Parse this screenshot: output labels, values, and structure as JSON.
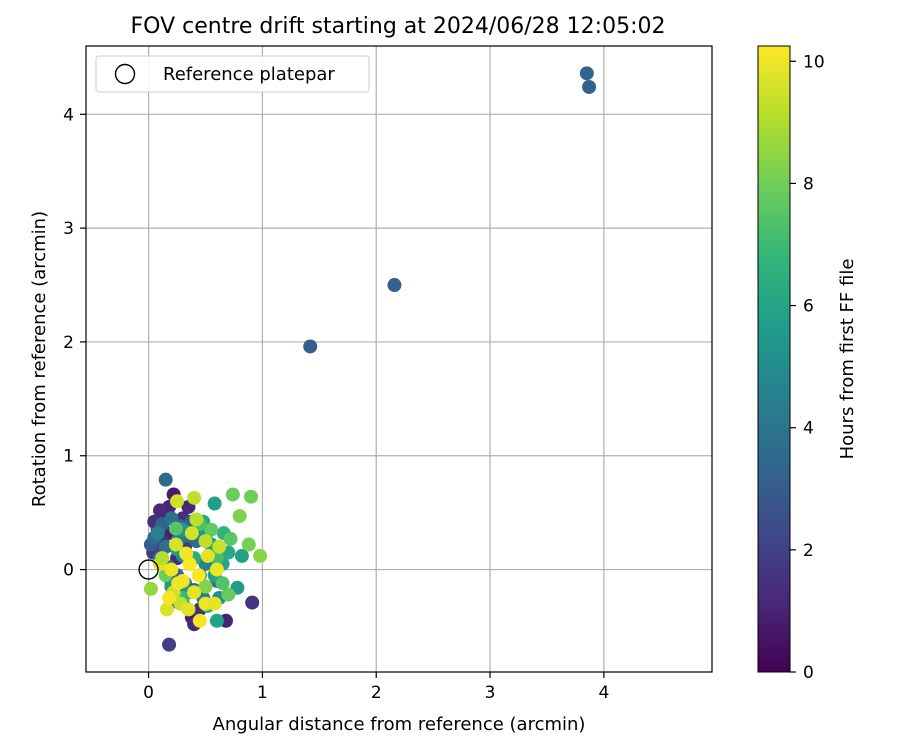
{
  "chart_data": {
    "type": "scatter",
    "title": "FOV centre drift starting at 2024/06/28 12:05:02",
    "xlabel": "Angular distance from reference (arcmin)",
    "ylabel": "Rotation from reference (arcmin)",
    "xlim": [
      -0.55,
      4.95
    ],
    "ylim": [
      -0.9,
      4.6
    ],
    "xticks": [
      0,
      1,
      2,
      3,
      4
    ],
    "yticks": [
      0,
      1,
      2,
      3,
      4
    ],
    "grid": true,
    "legend": {
      "position": "top-left",
      "entries": [
        {
          "label": "Reference platepar",
          "marker": "open-circle"
        }
      ]
    },
    "reference_point": {
      "x": 0,
      "y": 0
    },
    "colorbar": {
      "label": "Hours from first FF file",
      "range": [
        0,
        10.25
      ],
      "ticks": [
        0,
        2,
        4,
        6,
        8,
        10
      ],
      "colormap": "viridis",
      "stops": [
        "#440154",
        "#482878",
        "#3e4989",
        "#31688e",
        "#26828e",
        "#1f9e89",
        "#35b779",
        "#6ece58",
        "#b5de2b",
        "#fde725"
      ]
    },
    "points": [
      {
        "x": 0.15,
        "y": 0.48,
        "h": 0.5
      },
      {
        "x": 0.22,
        "y": 0.66,
        "h": 0.8
      },
      {
        "x": 0.18,
        "y": 0.55,
        "h": 1.0
      },
      {
        "x": 0.1,
        "y": 0.52,
        "h": 1.2
      },
      {
        "x": 0.05,
        "y": 0.42,
        "h": 1.4
      },
      {
        "x": 0.08,
        "y": 0.35,
        "h": 1.6
      },
      {
        "x": 0.2,
        "y": 0.32,
        "h": 1.0
      },
      {
        "x": 0.3,
        "y": 0.45,
        "h": 1.3
      },
      {
        "x": 0.12,
        "y": 0.25,
        "h": 1.5
      },
      {
        "x": 0.04,
        "y": 0.15,
        "h": 1.8
      },
      {
        "x": 0.1,
        "y": 0.18,
        "h": 2.0
      },
      {
        "x": 0.35,
        "y": 0.55,
        "h": 1.1
      },
      {
        "x": 0.25,
        "y": 0.1,
        "h": 1.2
      },
      {
        "x": 0.2,
        "y": -0.1,
        "h": 1.4
      },
      {
        "x": 0.3,
        "y": -0.3,
        "h": 1.0
      },
      {
        "x": 0.38,
        "y": -0.42,
        "h": 0.8
      },
      {
        "x": 0.4,
        "y": -0.48,
        "h": 1.2
      },
      {
        "x": 0.18,
        "y": -0.66,
        "h": 1.9
      },
      {
        "x": 0.68,
        "y": -0.45,
        "h": 1.0
      },
      {
        "x": 0.91,
        "y": -0.29,
        "h": 1.6
      },
      {
        "x": 0.45,
        "y": -0.35,
        "h": 1.5
      },
      {
        "x": 0.28,
        "y": -0.2,
        "h": 1.7
      },
      {
        "x": 0.32,
        "y": 0.2,
        "h": 1.8
      },
      {
        "x": 0.15,
        "y": 0.79,
        "h": 3.5
      },
      {
        "x": 0.02,
        "y": 0.22,
        "h": 3.0
      },
      {
        "x": 0.05,
        "y": 0.28,
        "h": 3.6
      },
      {
        "x": 0.12,
        "y": 0.4,
        "h": 3.2
      },
      {
        "x": 0.2,
        "y": 0.45,
        "h": 3.8
      },
      {
        "x": 0.28,
        "y": 0.38,
        "h": 3.4
      },
      {
        "x": 0.35,
        "y": 0.3,
        "h": 4.0
      },
      {
        "x": 0.42,
        "y": 0.25,
        "h": 3.6
      },
      {
        "x": 0.1,
        "y": 0.1,
        "h": 4.2
      },
      {
        "x": 0.18,
        "y": 0.02,
        "h": 3.9
      },
      {
        "x": 0.25,
        "y": -0.05,
        "h": 3.3
      },
      {
        "x": 0.32,
        "y": -0.12,
        "h": 4.1
      },
      {
        "x": 0.4,
        "y": -0.18,
        "h": 3.7
      },
      {
        "x": 0.48,
        "y": -0.25,
        "h": 4.4
      },
      {
        "x": 0.55,
        "y": 0.15,
        "h": 3.5
      },
      {
        "x": 0.5,
        "y": 0.05,
        "h": 4.6
      },
      {
        "x": 0.22,
        "y": -0.28,
        "h": 3.2
      },
      {
        "x": 0.3,
        "y": 0.12,
        "h": 4.8
      },
      {
        "x": 0.08,
        "y": 0.32,
        "h": 4.5
      },
      {
        "x": 0.38,
        "y": 0.42,
        "h": 3.1
      },
      {
        "x": 0.45,
        "y": 0.35,
        "h": 4.3
      },
      {
        "x": 0.6,
        "y": -0.1,
        "h": 4.0
      },
      {
        "x": 0.15,
        "y": 0.2,
        "h": 3.7
      },
      {
        "x": 0.26,
        "y": 0.26,
        "h": 4.2
      },
      {
        "x": 1.42,
        "y": 1.96,
        "h": 3.1
      },
      {
        "x": 2.16,
        "y": 2.5,
        "h": 3.1
      },
      {
        "x": 3.85,
        "y": 4.36,
        "h": 3.2
      },
      {
        "x": 3.87,
        "y": 4.24,
        "h": 3.2
      },
      {
        "x": 0.58,
        "y": 0.58,
        "h": 5.8
      },
      {
        "x": 0.6,
        "y": -0.45,
        "h": 5.9
      },
      {
        "x": 0.82,
        "y": 0.12,
        "h": 5.8
      },
      {
        "x": 0.78,
        "y": -0.16,
        "h": 5.6
      },
      {
        "x": 0.5,
        "y": 0.3,
        "h": 5.2
      },
      {
        "x": 0.55,
        "y": 0.22,
        "h": 5.5
      },
      {
        "x": 0.65,
        "y": 0.05,
        "h": 6.0
      },
      {
        "x": 0.7,
        "y": 0.15,
        "h": 6.2
      },
      {
        "x": 0.45,
        "y": -0.05,
        "h": 5.0
      },
      {
        "x": 0.35,
        "y": -0.2,
        "h": 5.4
      },
      {
        "x": 0.25,
        "y": 0.18,
        "h": 5.7
      },
      {
        "x": 0.4,
        "y": 0.1,
        "h": 6.3
      },
      {
        "x": 0.62,
        "y": -0.25,
        "h": 5.1
      },
      {
        "x": 0.52,
        "y": -0.32,
        "h": 6.5
      },
      {
        "x": 0.3,
        "y": 0.35,
        "h": 5.3
      },
      {
        "x": 0.48,
        "y": 0.42,
        "h": 6.1
      },
      {
        "x": 0.2,
        "y": -0.15,
        "h": 5.6
      },
      {
        "x": 0.66,
        "y": 0.32,
        "h": 6.6
      },
      {
        "x": 0.58,
        "y": -0.05,
        "h": 5.9
      },
      {
        "x": 0.74,
        "y": 0.66,
        "h": 7.9
      },
      {
        "x": 0.9,
        "y": 0.64,
        "h": 8.0
      },
      {
        "x": 0.8,
        "y": 0.47,
        "h": 8.2
      },
      {
        "x": 0.98,
        "y": 0.12,
        "h": 8.4
      },
      {
        "x": 0.88,
        "y": 0.22,
        "h": 8.1
      },
      {
        "x": 0.72,
        "y": 0.27,
        "h": 7.6
      },
      {
        "x": 0.7,
        "y": -0.22,
        "h": 7.8
      },
      {
        "x": 0.65,
        "y": -0.12,
        "h": 7.4
      },
      {
        "x": 0.02,
        "y": -0.17,
        "h": 8.6
      },
      {
        "x": 0.24,
        "y": 0.36,
        "h": 7.5
      },
      {
        "x": 0.6,
        "y": 0.1,
        "h": 7.2
      },
      {
        "x": 0.55,
        "y": 0.35,
        "h": 7.7
      },
      {
        "x": 0.45,
        "y": 0.4,
        "h": 7.3
      },
      {
        "x": 0.3,
        "y": -0.25,
        "h": 7.0
      },
      {
        "x": 0.15,
        "y": -0.05,
        "h": 7.9
      },
      {
        "x": 0.5,
        "y": -0.15,
        "h": 8.3
      },
      {
        "x": 0.4,
        "y": 0.63,
        "h": 9.3
      },
      {
        "x": 0.25,
        "y": 0.6,
        "h": 9.5
      },
      {
        "x": 0.38,
        "y": 0.32,
        "h": 9.6
      },
      {
        "x": 0.42,
        "y": 0.44,
        "h": 9.2
      },
      {
        "x": 0.1,
        "y": 0.05,
        "h": 9.8
      },
      {
        "x": 0.2,
        "y": 0.0,
        "h": 10.0
      },
      {
        "x": 0.3,
        "y": -0.1,
        "h": 10.1
      },
      {
        "x": 0.4,
        "y": -0.2,
        "h": 9.9
      },
      {
        "x": 0.5,
        "y": -0.3,
        "h": 10.0
      },
      {
        "x": 0.45,
        "y": -0.45,
        "h": 10.1
      },
      {
        "x": 0.16,
        "y": -0.35,
        "h": 9.7
      },
      {
        "x": 0.28,
        "y": -0.3,
        "h": 9.4
      },
      {
        "x": 0.36,
        "y": 0.05,
        "h": 10.2
      },
      {
        "x": 0.52,
        "y": 0.12,
        "h": 9.8
      },
      {
        "x": 0.6,
        "y": 0.0,
        "h": 10.0
      },
      {
        "x": 0.58,
        "y": -0.3,
        "h": 9.9
      },
      {
        "x": 0.24,
        "y": 0.22,
        "h": 9.6
      },
      {
        "x": 0.33,
        "y": 0.14,
        "h": 10.1
      },
      {
        "x": 0.22,
        "y": -0.2,
        "h": 9.5
      },
      {
        "x": 0.44,
        "y": -0.05,
        "h": 10.2
      },
      {
        "x": 0.26,
        "y": -0.12,
        "h": 10.0
      },
      {
        "x": 0.5,
        "y": 0.25,
        "h": 9.3
      },
      {
        "x": 0.35,
        "y": -0.35,
        "h": 9.8
      },
      {
        "x": 0.12,
        "y": 0.1,
        "h": 9.1
      },
      {
        "x": 0.18,
        "y": -0.25,
        "h": 10.1
      },
      {
        "x": 0.62,
        "y": 0.2,
        "h": 9.4
      }
    ]
  }
}
